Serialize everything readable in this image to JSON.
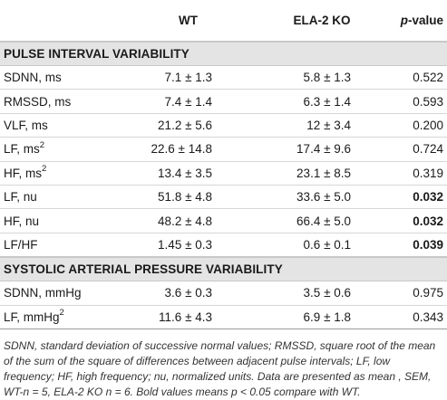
{
  "header": {
    "col_label": "",
    "col_wt": "WT",
    "col_ko": "ELA-2 KO",
    "col_p_italic": "p",
    "col_p_rest": "-value"
  },
  "sections": [
    {
      "title": "PULSE INTERVAL VARIABILITY",
      "rows": [
        {
          "label": "SDNN, ms",
          "sup": "",
          "wt": "7.1 ± 1.3",
          "ko": "5.8 ± 1.3",
          "p": "0.522",
          "bold": false
        },
        {
          "label": "RMSSD, ms",
          "sup": "",
          "wt": "7.4 ± 1.4",
          "ko": "6.3 ± 1.4",
          "p": "0.593",
          "bold": false
        },
        {
          "label": "VLF, ms",
          "sup": "",
          "wt": "21.2 ± 5.6",
          "ko": "12 ± 3.4",
          "p": "0.200",
          "bold": false
        },
        {
          "label": "LF, ms",
          "sup": "2",
          "wt": "22.6 ± 14.8",
          "ko": "17.4 ± 9.6",
          "p": "0.724",
          "bold": false
        },
        {
          "label": "HF, ms",
          "sup": "2",
          "wt": "13.4 ± 3.5",
          "ko": "23.1 ± 8.5",
          "p": "0.319",
          "bold": false
        },
        {
          "label": "LF, nu",
          "sup": "",
          "wt": "51.8 ± 4.8",
          "ko": "33.6 ± 5.0",
          "p": "0.032",
          "bold": true
        },
        {
          "label": "HF, nu",
          "sup": "",
          "wt": "48.2 ± 4.8",
          "ko": "66.4 ± 5.0",
          "p": "0.032",
          "bold": true
        },
        {
          "label": "LF/HF",
          "sup": "",
          "wt": "1.45 ± 0.3",
          "ko": "0.6 ± 0.1",
          "p": "0.039",
          "bold": true
        }
      ]
    },
    {
      "title": "SYSTOLIC ARTERIAL PRESSURE VARIABILITY",
      "rows": [
        {
          "label": "SDNN, mmHg",
          "sup": "",
          "wt": "3.6 ± 0.3",
          "ko": "3.5 ± 0.6",
          "p": "0.975",
          "bold": false
        },
        {
          "label": "LF, mmHg",
          "sup": "2",
          "wt": "11.6 ± 4.3",
          "ko": "6.9 ± 1.8",
          "p": "0.343",
          "bold": false
        }
      ]
    }
  ],
  "footnote": "SDNN, standard deviation of successive normal values; RMSSD, square root of the mean of the sum of the square of differences between adjacent pulse intervals; LF, low frequency; HF, high frequency; nu, normalized units. Data are presented as mean , SEM, WT-n = 5, ELA-2 KO n = 6. Bold values means p < 0.05 compare with WT."
}
